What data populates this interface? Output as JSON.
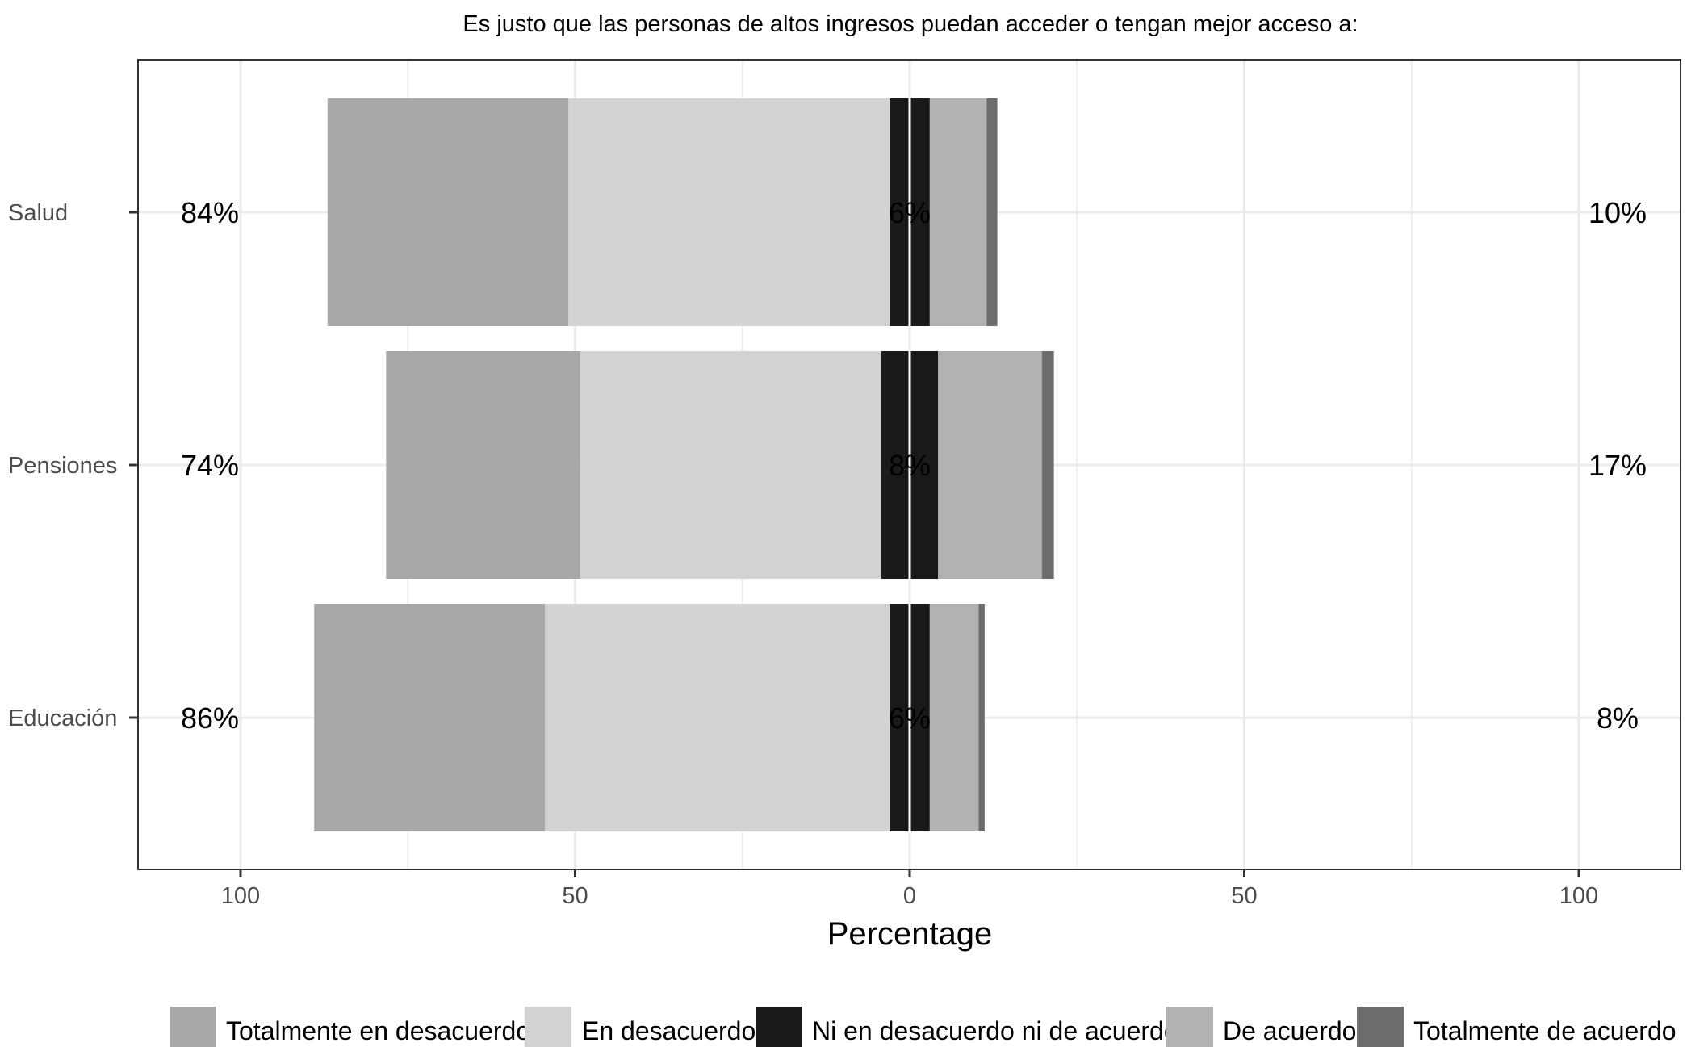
{
  "chart_data": {
    "type": "bar",
    "orientation": "horizontal",
    "stacking": "diverging",
    "title": "Es justo que las personas de altos ingresos puedan acceder o tengan mejor acceso a:",
    "xlabel": "Percentage",
    "ylabel": "",
    "xlim": [
      -115,
      115
    ],
    "x_ticks": [
      -100,
      -50,
      0,
      50,
      100
    ],
    "x_tick_labels": [
      "100",
      "50",
      "0",
      "50",
      "100"
    ],
    "grid": true,
    "legend_position": "bottom",
    "categories": [
      "Salud",
      "Pensiones",
      "Educación"
    ],
    "series": [
      {
        "name": "Totalmente en desacuerdo",
        "color": "#a8a8a8",
        "values": [
          36,
          29,
          34.5
        ]
      },
      {
        "name": "En desacuerdo",
        "color": "#d3d3d3",
        "values": [
          48,
          45,
          51.5
        ]
      },
      {
        "name": "Ni en desacuerdo ni de acuerdo",
        "color": "#1a1a1a",
        "values": [
          6,
          8.5,
          6
        ]
      },
      {
        "name": "De acuerdo",
        "color": "#b2b2b2",
        "values": [
          8.5,
          15.5,
          7.3
        ]
      },
      {
        "name": "Totalmente de acuerdo",
        "color": "#6c6c6c",
        "values": [
          1.6,
          1.8,
          0.9
        ]
      }
    ],
    "left_labels": [
      "84%",
      "74%",
      "86%"
    ],
    "center_labels": [
      "6%",
      "8%",
      "6%"
    ],
    "right_labels": [
      "10%",
      "17%",
      "8%"
    ]
  }
}
